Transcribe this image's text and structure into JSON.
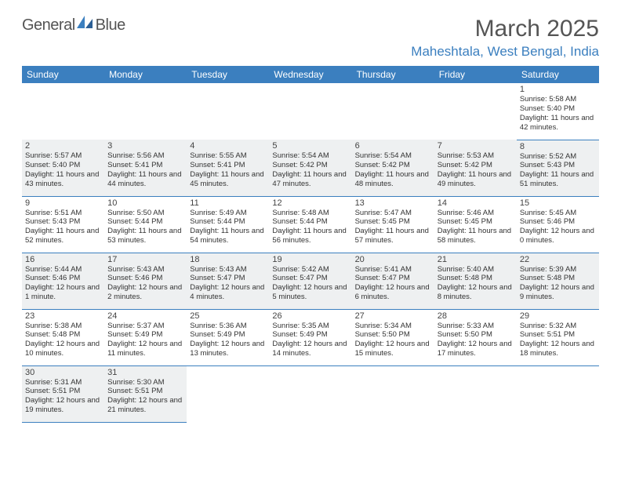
{
  "brand": {
    "name1": "General",
    "name2": "Blue"
  },
  "title": "March 2025",
  "location": "Maheshtala, West Bengal, India",
  "colors": {
    "header_bg": "#3b7fbf",
    "header_fg": "#ffffff",
    "rule": "#3b7fbf",
    "shade": "#eef0f1",
    "logo_accent": "#3b7fbf"
  },
  "day_headers": [
    "Sunday",
    "Monday",
    "Tuesday",
    "Wednesday",
    "Thursday",
    "Friday",
    "Saturday"
  ],
  "weeks": [
    [
      null,
      null,
      null,
      null,
      null,
      null,
      {
        "n": "1",
        "sr": "Sunrise: 5:58 AM",
        "ss": "Sunset: 5:40 PM",
        "dl": "Daylight: 11 hours and 42 minutes."
      }
    ],
    [
      {
        "n": "2",
        "sr": "Sunrise: 5:57 AM",
        "ss": "Sunset: 5:40 PM",
        "dl": "Daylight: 11 hours and 43 minutes."
      },
      {
        "n": "3",
        "sr": "Sunrise: 5:56 AM",
        "ss": "Sunset: 5:41 PM",
        "dl": "Daylight: 11 hours and 44 minutes."
      },
      {
        "n": "4",
        "sr": "Sunrise: 5:55 AM",
        "ss": "Sunset: 5:41 PM",
        "dl": "Daylight: 11 hours and 45 minutes."
      },
      {
        "n": "5",
        "sr": "Sunrise: 5:54 AM",
        "ss": "Sunset: 5:42 PM",
        "dl": "Daylight: 11 hours and 47 minutes."
      },
      {
        "n": "6",
        "sr": "Sunrise: 5:54 AM",
        "ss": "Sunset: 5:42 PM",
        "dl": "Daylight: 11 hours and 48 minutes."
      },
      {
        "n": "7",
        "sr": "Sunrise: 5:53 AM",
        "ss": "Sunset: 5:42 PM",
        "dl": "Daylight: 11 hours and 49 minutes."
      },
      {
        "n": "8",
        "sr": "Sunrise: 5:52 AM",
        "ss": "Sunset: 5:43 PM",
        "dl": "Daylight: 11 hours and 51 minutes."
      }
    ],
    [
      {
        "n": "9",
        "sr": "Sunrise: 5:51 AM",
        "ss": "Sunset: 5:43 PM",
        "dl": "Daylight: 11 hours and 52 minutes."
      },
      {
        "n": "10",
        "sr": "Sunrise: 5:50 AM",
        "ss": "Sunset: 5:44 PM",
        "dl": "Daylight: 11 hours and 53 minutes."
      },
      {
        "n": "11",
        "sr": "Sunrise: 5:49 AM",
        "ss": "Sunset: 5:44 PM",
        "dl": "Daylight: 11 hours and 54 minutes."
      },
      {
        "n": "12",
        "sr": "Sunrise: 5:48 AM",
        "ss": "Sunset: 5:44 PM",
        "dl": "Daylight: 11 hours and 56 minutes."
      },
      {
        "n": "13",
        "sr": "Sunrise: 5:47 AM",
        "ss": "Sunset: 5:45 PM",
        "dl": "Daylight: 11 hours and 57 minutes."
      },
      {
        "n": "14",
        "sr": "Sunrise: 5:46 AM",
        "ss": "Sunset: 5:45 PM",
        "dl": "Daylight: 11 hours and 58 minutes."
      },
      {
        "n": "15",
        "sr": "Sunrise: 5:45 AM",
        "ss": "Sunset: 5:46 PM",
        "dl": "Daylight: 12 hours and 0 minutes."
      }
    ],
    [
      {
        "n": "16",
        "sr": "Sunrise: 5:44 AM",
        "ss": "Sunset: 5:46 PM",
        "dl": "Daylight: 12 hours and 1 minute."
      },
      {
        "n": "17",
        "sr": "Sunrise: 5:43 AM",
        "ss": "Sunset: 5:46 PM",
        "dl": "Daylight: 12 hours and 2 minutes."
      },
      {
        "n": "18",
        "sr": "Sunrise: 5:43 AM",
        "ss": "Sunset: 5:47 PM",
        "dl": "Daylight: 12 hours and 4 minutes."
      },
      {
        "n": "19",
        "sr": "Sunrise: 5:42 AM",
        "ss": "Sunset: 5:47 PM",
        "dl": "Daylight: 12 hours and 5 minutes."
      },
      {
        "n": "20",
        "sr": "Sunrise: 5:41 AM",
        "ss": "Sunset: 5:47 PM",
        "dl": "Daylight: 12 hours and 6 minutes."
      },
      {
        "n": "21",
        "sr": "Sunrise: 5:40 AM",
        "ss": "Sunset: 5:48 PM",
        "dl": "Daylight: 12 hours and 8 minutes."
      },
      {
        "n": "22",
        "sr": "Sunrise: 5:39 AM",
        "ss": "Sunset: 5:48 PM",
        "dl": "Daylight: 12 hours and 9 minutes."
      }
    ],
    [
      {
        "n": "23",
        "sr": "Sunrise: 5:38 AM",
        "ss": "Sunset: 5:48 PM",
        "dl": "Daylight: 12 hours and 10 minutes."
      },
      {
        "n": "24",
        "sr": "Sunrise: 5:37 AM",
        "ss": "Sunset: 5:49 PM",
        "dl": "Daylight: 12 hours and 11 minutes."
      },
      {
        "n": "25",
        "sr": "Sunrise: 5:36 AM",
        "ss": "Sunset: 5:49 PM",
        "dl": "Daylight: 12 hours and 13 minutes."
      },
      {
        "n": "26",
        "sr": "Sunrise: 5:35 AM",
        "ss": "Sunset: 5:49 PM",
        "dl": "Daylight: 12 hours and 14 minutes."
      },
      {
        "n": "27",
        "sr": "Sunrise: 5:34 AM",
        "ss": "Sunset: 5:50 PM",
        "dl": "Daylight: 12 hours and 15 minutes."
      },
      {
        "n": "28",
        "sr": "Sunrise: 5:33 AM",
        "ss": "Sunset: 5:50 PM",
        "dl": "Daylight: 12 hours and 17 minutes."
      },
      {
        "n": "29",
        "sr": "Sunrise: 5:32 AM",
        "ss": "Sunset: 5:51 PM",
        "dl": "Daylight: 12 hours and 18 minutes."
      }
    ],
    [
      {
        "n": "30",
        "sr": "Sunrise: 5:31 AM",
        "ss": "Sunset: 5:51 PM",
        "dl": "Daylight: 12 hours and 19 minutes."
      },
      {
        "n": "31",
        "sr": "Sunrise: 5:30 AM",
        "ss": "Sunset: 5:51 PM",
        "dl": "Daylight: 12 hours and 21 minutes."
      },
      null,
      null,
      null,
      null,
      null
    ]
  ]
}
